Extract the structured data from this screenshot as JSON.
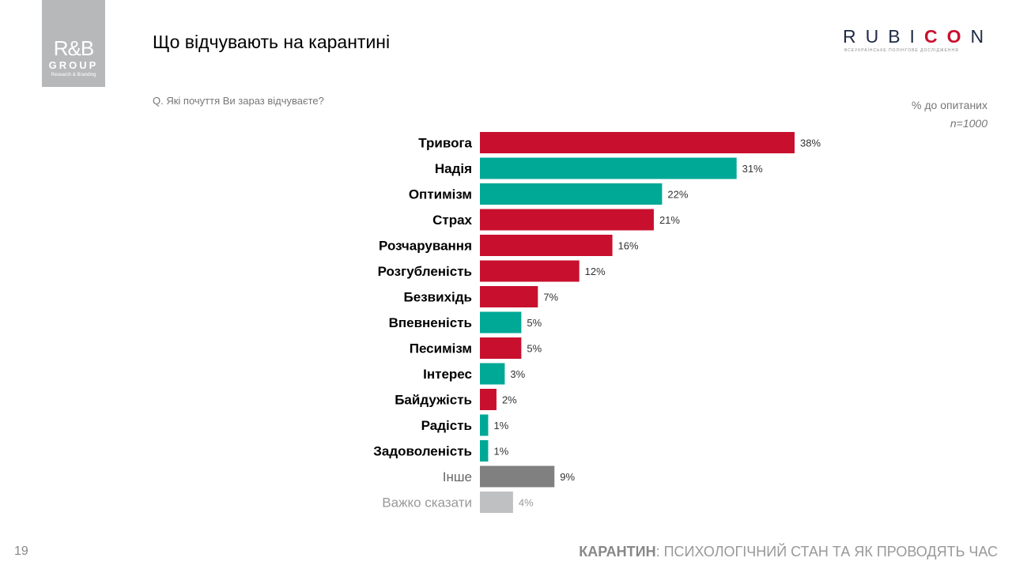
{
  "logo": {
    "line1": "R&B",
    "line2": "GROUP",
    "line3": "Research & Branding"
  },
  "title": "Що відчувають на карантині",
  "question": "Q. Які почуття Ви зараз відчуваєте?",
  "rubicon": {
    "part1": "RUBI",
    "part2": "CO",
    "part3": "N",
    "tagline": "ВСЕУКРАЇНСЬКЕ ПОЛІНГОВЕ ДОСЛІДЖЕННЯ"
  },
  "unit_label": "% до опитаних",
  "sample": "n=1000",
  "page_number": "19",
  "footer": {
    "bold": "КАРАНТИН",
    "rest": ": ПСИХОЛОГІЧНИЙ СТАН ТА ЯК ПРОВОДЯТЬ ЧАС"
  },
  "colors": {
    "negative": "#c8102e",
    "positive": "#00a896",
    "other": "#808080",
    "hard_to_say": "#bfc0c2"
  },
  "chart_data": {
    "type": "bar",
    "orientation": "horizontal",
    "unit": "%",
    "xlim": [
      0,
      38
    ],
    "grid": false,
    "categories": [
      "Тривога",
      "Надія",
      "Оптимізм",
      "Страх",
      "Розчарування",
      "Розгубленість",
      "Безвихідь",
      "Впевненість",
      "Песимізм",
      "Інтерес",
      "Байдужість",
      "Радість",
      "Задоволеність",
      "Інше",
      "Важко сказати"
    ],
    "values": [
      38,
      31,
      22,
      21,
      16,
      12,
      7,
      5,
      5,
      3,
      2,
      1,
      1,
      9,
      4
    ],
    "labels": [
      "38%",
      "31%",
      "22%",
      "21%",
      "16%",
      "12%",
      "7%",
      "5%",
      "5%",
      "3%",
      "2%",
      "1%",
      "1%",
      "9%",
      "4%"
    ],
    "bar_types": [
      "negative",
      "positive",
      "positive",
      "negative",
      "negative",
      "negative",
      "negative",
      "positive",
      "negative",
      "positive",
      "negative",
      "positive",
      "positive",
      "other",
      "hard_to_say"
    ]
  }
}
